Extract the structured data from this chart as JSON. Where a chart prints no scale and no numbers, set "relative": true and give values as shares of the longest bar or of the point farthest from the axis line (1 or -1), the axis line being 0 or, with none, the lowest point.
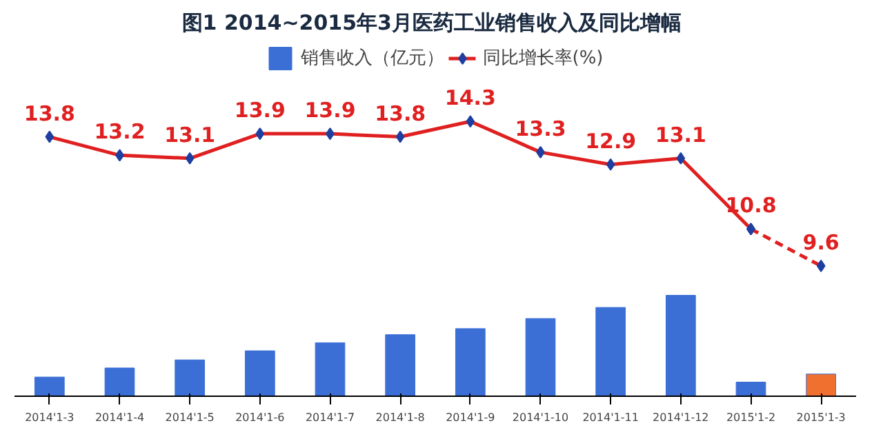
{
  "chart_data": [
    {
      "type": "line",
      "title": "图1  2014~2015年3月医药工业销售收入及同比增幅",
      "categories": [
        "2014'1-3",
        "2014'1-4",
        "2014'1-5",
        "2014'1-6",
        "2014'1-7",
        "2014'1-8",
        "2014'1-9",
        "2014'1-10",
        "2014'1-11",
        "2014'1-12",
        "2015'1-2",
        "2015'1-3"
      ],
      "series": [
        {
          "name": "同比增长率(%)",
          "color": "#e02020",
          "marker": "diamond",
          "line_style": "solid",
          "values": [
            13.8,
            13.2,
            13.1,
            13.9,
            13.9,
            13.8,
            14.3,
            13.3,
            12.9,
            13.1,
            10.8,
            null
          ],
          "value_labels": [
            "13.8",
            "13.2",
            "13.1",
            "13.9",
            "13.9",
            "13.8",
            "14.3",
            "13.3",
            "12.9",
            "13.1",
            "10.8",
            null
          ]
        },
        {
          "color": "#e02020",
          "marker": "diamond",
          "line_style": "dashed",
          "x": [
            "2015'1-2",
            "2015'1-3"
          ],
          "values": [
            10.8,
            9.6
          ],
          "value_labels": [
            null,
            "9.6"
          ]
        }
      ],
      "legend": "top",
      "grid": false,
      "tick_labels": false
    },
    {
      "type": "bar",
      "relative": true,
      "categories": [
        "2014'1-3",
        "2014'1-4",
        "2014'1-5",
        "2014'1-6",
        "2014'1-7",
        "2014'1-8",
        "2014'1-9",
        "2014'1-10",
        "2014'1-11",
        "2014'1-12",
        "2015'1-2",
        "2015'1-3"
      ],
      "series": [
        {
          "name": "销售收入（亿元）",
          "color": "#3b6fd6",
          "colors": [
            "#3b6fd6",
            "#3b6fd6",
            "#3b6fd6",
            "#3b6fd6",
            "#3b6fd6",
            "#3b6fd6",
            "#3b6fd6",
            "#3b6fd6",
            "#3b6fd6",
            "#3b6fd6",
            "#3b6fd6",
            "#f07030"
          ],
          "values": [
            0.19,
            0.28,
            0.36,
            0.45,
            0.53,
            0.61,
            0.67,
            0.77,
            0.88,
            1,
            0.14,
            0.22
          ]
        }
      ],
      "legend": "top",
      "grid": false,
      "tick_labels": "x"
    }
  ]
}
